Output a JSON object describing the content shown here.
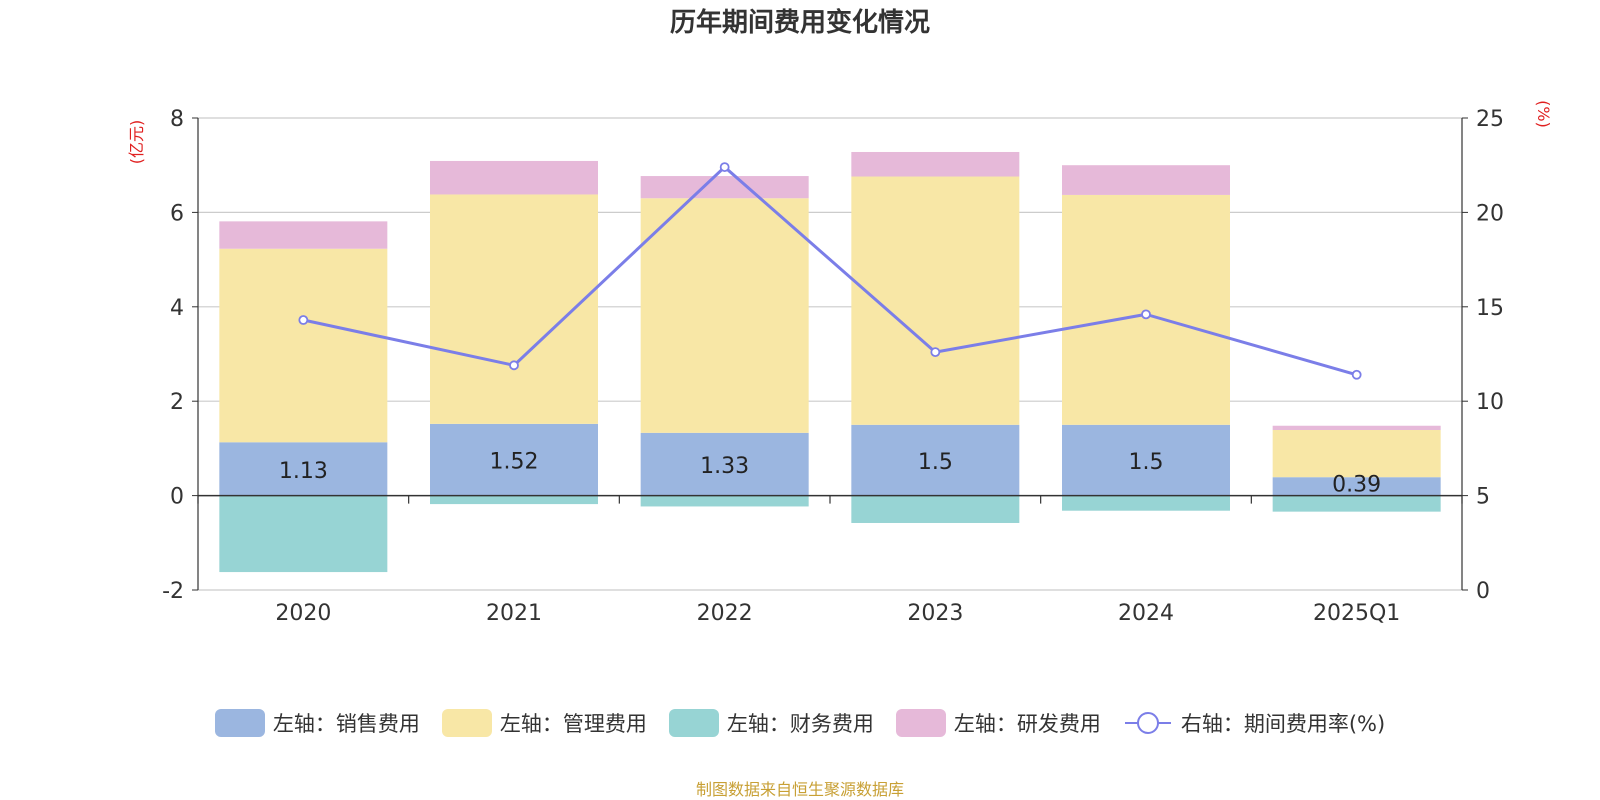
{
  "chart_data": {
    "type": "bar",
    "title": "历年期间费用变化情况",
    "categories": [
      "2020",
      "2021",
      "2022",
      "2023",
      "2024",
      "2025Q1"
    ],
    "series": [
      {
        "name": "左轴：销售费用",
        "axis": "left",
        "kind": "bar",
        "color": "#9bb6e0",
        "values": [
          1.13,
          1.52,
          1.33,
          1.5,
          1.5,
          0.39
        ],
        "labels": [
          "1.13",
          "1.52",
          "1.33",
          "1.5",
          "1.5",
          "0.39"
        ]
      },
      {
        "name": "左轴：管理费用",
        "axis": "left",
        "kind": "bar",
        "color": "#f8e7a6",
        "values": [
          4.1,
          4.86,
          4.97,
          5.26,
          4.87,
          1.0
        ]
      },
      {
        "name": "左轴：财务费用",
        "axis": "left",
        "kind": "bar",
        "color": "#97d4d4",
        "values": [
          -1.62,
          -0.18,
          -0.23,
          -0.58,
          -0.32,
          -0.34
        ]
      },
      {
        "name": "左轴：研发费用",
        "axis": "left",
        "kind": "bar",
        "color": "#e6b9d9",
        "values": [
          0.58,
          0.71,
          0.47,
          0.52,
          0.63,
          0.09
        ]
      },
      {
        "name": "右轴：期间费用率(%)",
        "axis": "right",
        "kind": "line",
        "color": "#7b7ee8",
        "values": [
          14.3,
          11.9,
          22.4,
          12.6,
          14.6,
          11.4
        ]
      }
    ],
    "left_axis": {
      "label": "(亿元)",
      "min": -2,
      "max": 8,
      "ticks": [
        "-2",
        "0",
        "2",
        "4",
        "6",
        "8"
      ]
    },
    "right_axis": {
      "label": "(%)",
      "min": 0,
      "max": 25,
      "ticks": [
        "0",
        "5",
        "10",
        "15",
        "20",
        "25"
      ]
    },
    "grid": true,
    "legend_position": "bottom"
  },
  "source": "制图数据来自恒生聚源数据库"
}
